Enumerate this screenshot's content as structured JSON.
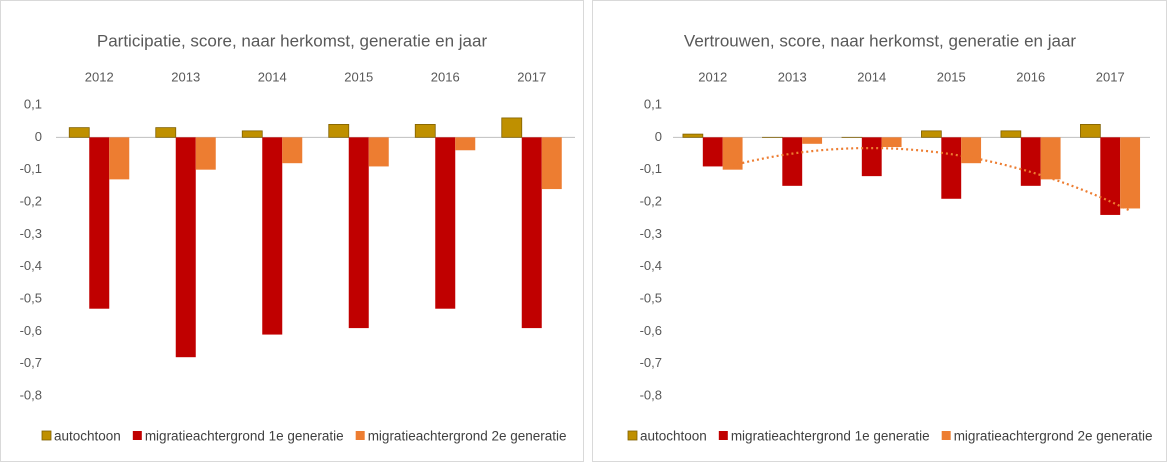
{
  "chart_data": [
    {
      "type": "bar",
      "title": "Participatie, score, naar herkomst, generatie en jaar",
      "categories": [
        "2012",
        "2013",
        "2014",
        "2015",
        "2016",
        "2017"
      ],
      "series": [
        {
          "name": "autochtoon",
          "color": "#bf9000",
          "values": [
            0.03,
            0.03,
            0.02,
            0.04,
            0.04,
            0.06
          ]
        },
        {
          "name": "migratieachtergrond 1e generatie",
          "color": "#c00000",
          "values": [
            -0.53,
            -0.68,
            -0.61,
            -0.59,
            -0.53,
            -0.59
          ]
        },
        {
          "name": "migratieachtergrond 2e generatie",
          "color": "#ed7d31",
          "values": [
            -0.13,
            -0.1,
            -0.08,
            -0.09,
            -0.04,
            -0.16
          ]
        }
      ],
      "ylim": [
        -0.8,
        0.1
      ],
      "yticks": [
        {
          "value": 0.1,
          "label": "0,1"
        },
        0,
        {
          "value": -0.1,
          "label": "-0,1"
        },
        {
          "value": -0.2,
          "label": "-0,2"
        },
        {
          "value": -0.3,
          "label": "-0,3"
        },
        {
          "value": -0.4,
          "label": "-0,4"
        },
        {
          "value": -0.5,
          "label": "-0,5"
        },
        {
          "value": -0.6,
          "label": "-0,6"
        },
        {
          "value": -0.7,
          "label": "-0,7"
        },
        {
          "value": -0.8,
          "label": "-0,8"
        }
      ],
      "grid": false,
      "legend": "bottom"
    },
    {
      "type": "bar",
      "title": "Vertrouwen, score, naar herkomst, generatie en jaar",
      "categories": [
        "2012",
        "2013",
        "2014",
        "2015",
        "2016",
        "2017"
      ],
      "series": [
        {
          "name": "autochtoon",
          "color": "#bf9000",
          "values": [
            0.01,
            0,
            0,
            0.02,
            0.02,
            0.04
          ]
        },
        {
          "name": "migratieachtergrond 1e generatie",
          "color": "#c00000",
          "values": [
            -0.09,
            -0.15,
            -0.12,
            -0.19,
            -0.15,
            -0.24
          ]
        },
        {
          "name": "migratieachtergrond 2e generatie",
          "color": "#ed7d31",
          "values": [
            -0.1,
            -0.02,
            -0.03,
            -0.08,
            -0.13,
            -0.22
          ],
          "trendline": true
        }
      ],
      "ylim": [
        -0.8,
        0.1
      ],
      "yticks": [
        {
          "value": 0.1,
          "label": "0,1"
        },
        0,
        {
          "value": -0.1,
          "label": "-0,1"
        },
        {
          "value": -0.2,
          "label": "-0,2"
        },
        {
          "value": -0.3,
          "label": "-0,3"
        },
        {
          "value": -0.4,
          "label": "-0,4"
        },
        {
          "value": -0.5,
          "label": "-0,5"
        },
        {
          "value": -0.6,
          "label": "-0,6"
        },
        {
          "value": -0.7,
          "label": "-0,7"
        },
        {
          "value": -0.8,
          "label": "-0,8"
        }
      ],
      "grid": false,
      "legend": "bottom"
    }
  ]
}
